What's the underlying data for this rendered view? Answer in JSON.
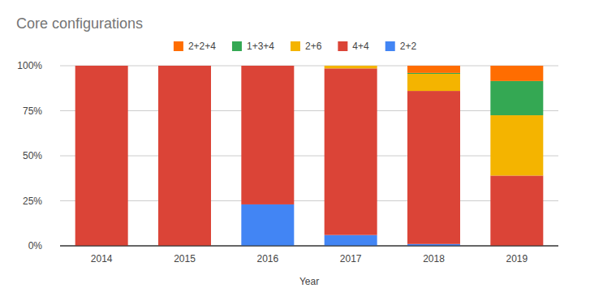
{
  "chart_data": {
    "type": "bar",
    "title": "Core configurations",
    "x_label": "Year",
    "categories": [
      "2014",
      "2015",
      "2016",
      "2017",
      "2018",
      "2019"
    ],
    "series": [
      {
        "name": "2+2+4",
        "color": "#ff6d01",
        "values": [
          0,
          0,
          0,
          0,
          4,
          8.5
        ]
      },
      {
        "name": "1+3+4",
        "color": "#34a853",
        "values": [
          0,
          0,
          0,
          0,
          0.5,
          19
        ]
      },
      {
        "name": "2+6",
        "color": "#f4b400",
        "values": [
          0,
          0,
          0,
          1.5,
          9.5,
          33.5
        ]
      },
      {
        "name": "4+4",
        "color": "#db4437",
        "values": [
          100,
          100,
          77,
          92.5,
          85,
          39
        ]
      },
      {
        "name": "2+2",
        "color": "#4285f4",
        "values": [
          0,
          0,
          23,
          6,
          1,
          0
        ]
      }
    ],
    "stacked": true,
    "ylim": [
      0,
      100
    ],
    "yticks": [
      {
        "value": 0,
        "label": "0%"
      },
      {
        "value": 25,
        "label": "25%"
      },
      {
        "value": 50,
        "label": "50%"
      },
      {
        "value": 75,
        "label": "75%"
      },
      {
        "value": 100,
        "label": "100%"
      }
    ],
    "grid": true,
    "legend": "top"
  }
}
